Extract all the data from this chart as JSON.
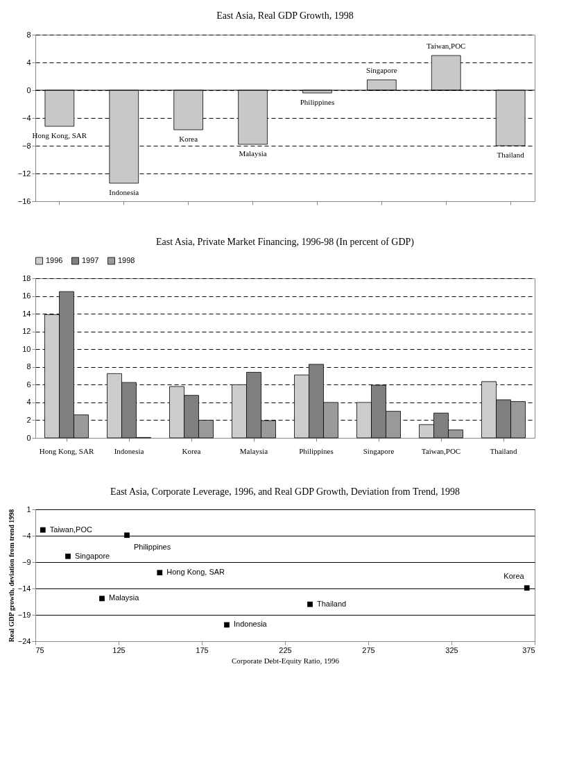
{
  "chart_data": [
    {
      "type": "bar",
      "title": "East Asia, Real GDP Growth, 1998",
      "categories": [
        "Hong Kong, SAR",
        "Indonesia",
        "Korea",
        "Malaysia",
        "Philippines",
        "Singapore",
        "Taiwan,POC",
        "Thailand"
      ],
      "values": [
        -5.2,
        -13.4,
        -5.7,
        -7.8,
        -0.4,
        1.5,
        5.0,
        -8.0
      ],
      "color": "#c8c8c8",
      "ylim": [
        -16,
        8
      ],
      "yticks": [
        -16,
        -12,
        -8,
        -4,
        0,
        4,
        8
      ],
      "grid": "y"
    },
    {
      "type": "bar",
      "title": "East Asia, Private Market Financing, 1996-98 (In percent of GDP)",
      "categories": [
        "Hong Kong, SAR",
        "Indonesia",
        "Korea",
        "Malaysia",
        "Philippines",
        "Singapore",
        "Taiwan,POC",
        "Thailand"
      ],
      "series": [
        {
          "name": "1996",
          "color": "#cccccc",
          "values": [
            13.9,
            7.25,
            5.8,
            6.0,
            7.1,
            4.0,
            1.5,
            6.35
          ]
        },
        {
          "name": "1997",
          "color": "#7f7f7f",
          "values": [
            16.5,
            6.25,
            4.8,
            7.4,
            8.3,
            5.95,
            2.8,
            4.3
          ]
        },
        {
          "name": "1998",
          "color": "#9a9a9a",
          "values": [
            2.6,
            0.05,
            2.0,
            1.95,
            4.0,
            3.0,
            0.9,
            4.1
          ]
        }
      ],
      "ylim": [
        0,
        18
      ],
      "yticks": [
        0,
        2,
        4,
        6,
        8,
        10,
        12,
        14,
        16,
        18
      ],
      "grid": "y",
      "legend": "top"
    },
    {
      "type": "scatter",
      "title": "East Asia, Corporate Leverage, 1996, and Real GDP Growth, Deviation from Trend, 1998",
      "xlabel": "Corporate Debt-Equity Ratio, 1996",
      "ylabel": "Real GDP growth, deviation from trend 1998",
      "x": [
        79.5,
        130,
        94.6,
        149.7,
        370.3,
        115,
        240,
        190
      ],
      "values": [
        -2.9,
        -3.9,
        -7.9,
        -11.0,
        -13.9,
        -15.9,
        -17.0,
        -20.9
      ],
      "color": "#000000",
      "marker": "square",
      "xlim": [
        75,
        375
      ],
      "xticks": [
        75,
        125,
        175,
        225,
        275,
        325,
        375
      ],
      "ylim": [
        -24,
        1
      ],
      "yticks": [
        -24,
        -19,
        -14,
        -9,
        -4,
        1
      ],
      "grid": "y",
      "annotations": [
        {
          "text": "Taiwan,POC",
          "x": 79.5,
          "y": -2.9
        },
        {
          "text": "Philippines",
          "x": 130,
          "y": -3.9
        },
        {
          "text": "Singapore",
          "x": 94.6,
          "y": -7.9
        },
        {
          "text": "Hong Kong, SAR",
          "x": 149.7,
          "y": -11.0
        },
        {
          "text": "Korea",
          "x": 370.3,
          "y": -13.9
        },
        {
          "text": "Malaysia",
          "x": 115,
          "y": -15.9
        },
        {
          "text": "Thailand",
          "x": 240,
          "y": -17.0
        },
        {
          "text": "Indonesia",
          "x": 190,
          "y": -20.9
        }
      ]
    }
  ]
}
